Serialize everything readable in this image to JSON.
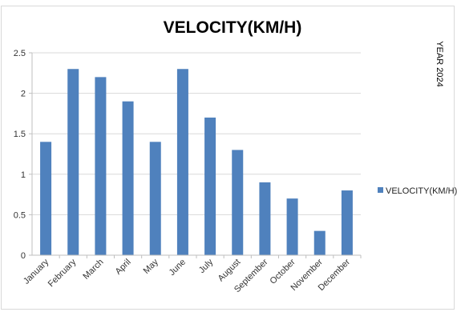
{
  "chart_data": {
    "type": "bar",
    "title": "VELOCITY(KM/H)",
    "side_label": "YEAR 2024",
    "categories": [
      "January",
      "February",
      "March",
      "April",
      "May",
      "June",
      "July",
      "August",
      "September",
      "October",
      "November",
      "December"
    ],
    "series": [
      {
        "name": "VELOCITY(KM/H)",
        "values": [
          1.4,
          2.3,
          2.2,
          1.9,
          1.4,
          2.3,
          1.7,
          1.3,
          0.9,
          0.7,
          0.3,
          0.8
        ],
        "color": "#4f81bd"
      }
    ],
    "ylim": [
      0,
      2.5
    ],
    "yticks": [
      0,
      0.5,
      1,
      1.5,
      2,
      2.5
    ],
    "ytick_labels": [
      "0",
      "0.5",
      "1",
      "1.5",
      "2",
      "2.5"
    ],
    "grid": true,
    "legend": "right"
  }
}
